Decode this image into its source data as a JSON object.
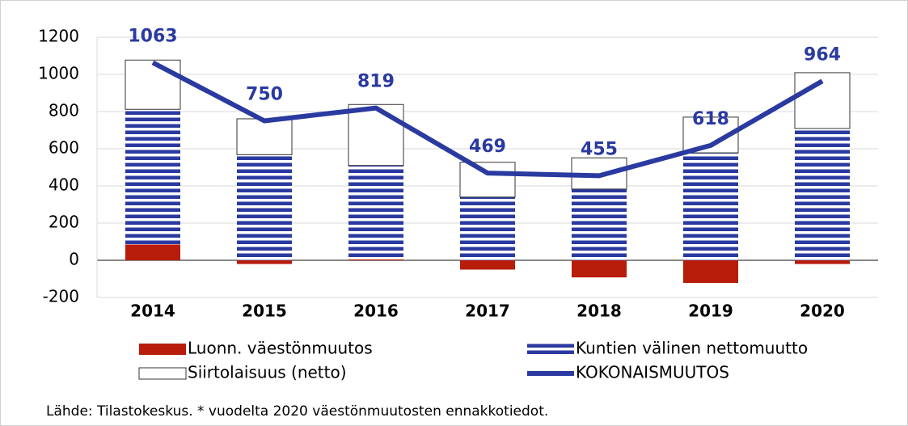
{
  "chart_data": {
    "type": "bar",
    "categories": [
      "2014",
      "2015",
      "2016",
      "2017",
      "2018",
      "2019",
      "2020"
    ],
    "series": [
      {
        "name": "Luonn. väestönmuutos",
        "type": "bar",
        "color": "#b81c0b",
        "values": [
          85,
          -20,
          5,
          -50,
          -92,
          -122,
          -20
        ]
      },
      {
        "name": "Kuntien välinen nettomuutto",
        "type": "bar",
        "color": "#2a3aa0",
        "pattern": "stripes",
        "values": [
          727,
          568,
          505,
          340,
          383,
          578,
          709
        ]
      },
      {
        "name": "Siirtolaisuus (netto)",
        "type": "bar",
        "color": "#ffffff",
        "values": [
          265,
          193,
          328,
          187,
          168,
          192,
          300
        ]
      },
      {
        "name": "KOKONAISMUUTOS",
        "type": "line",
        "color": "#2a3aa0",
        "values": [
          1063,
          750,
          819,
          469,
          455,
          618,
          964
        ]
      }
    ],
    "ylim": [
      -200,
      1200
    ],
    "yticks": [
      -200,
      0,
      200,
      400,
      600,
      800,
      1000,
      1200
    ],
    "grid": true,
    "source": "Lähde: Tilastokeskus.  * vuodelta 2020 väestönmuutosten ennakkotiedot."
  }
}
